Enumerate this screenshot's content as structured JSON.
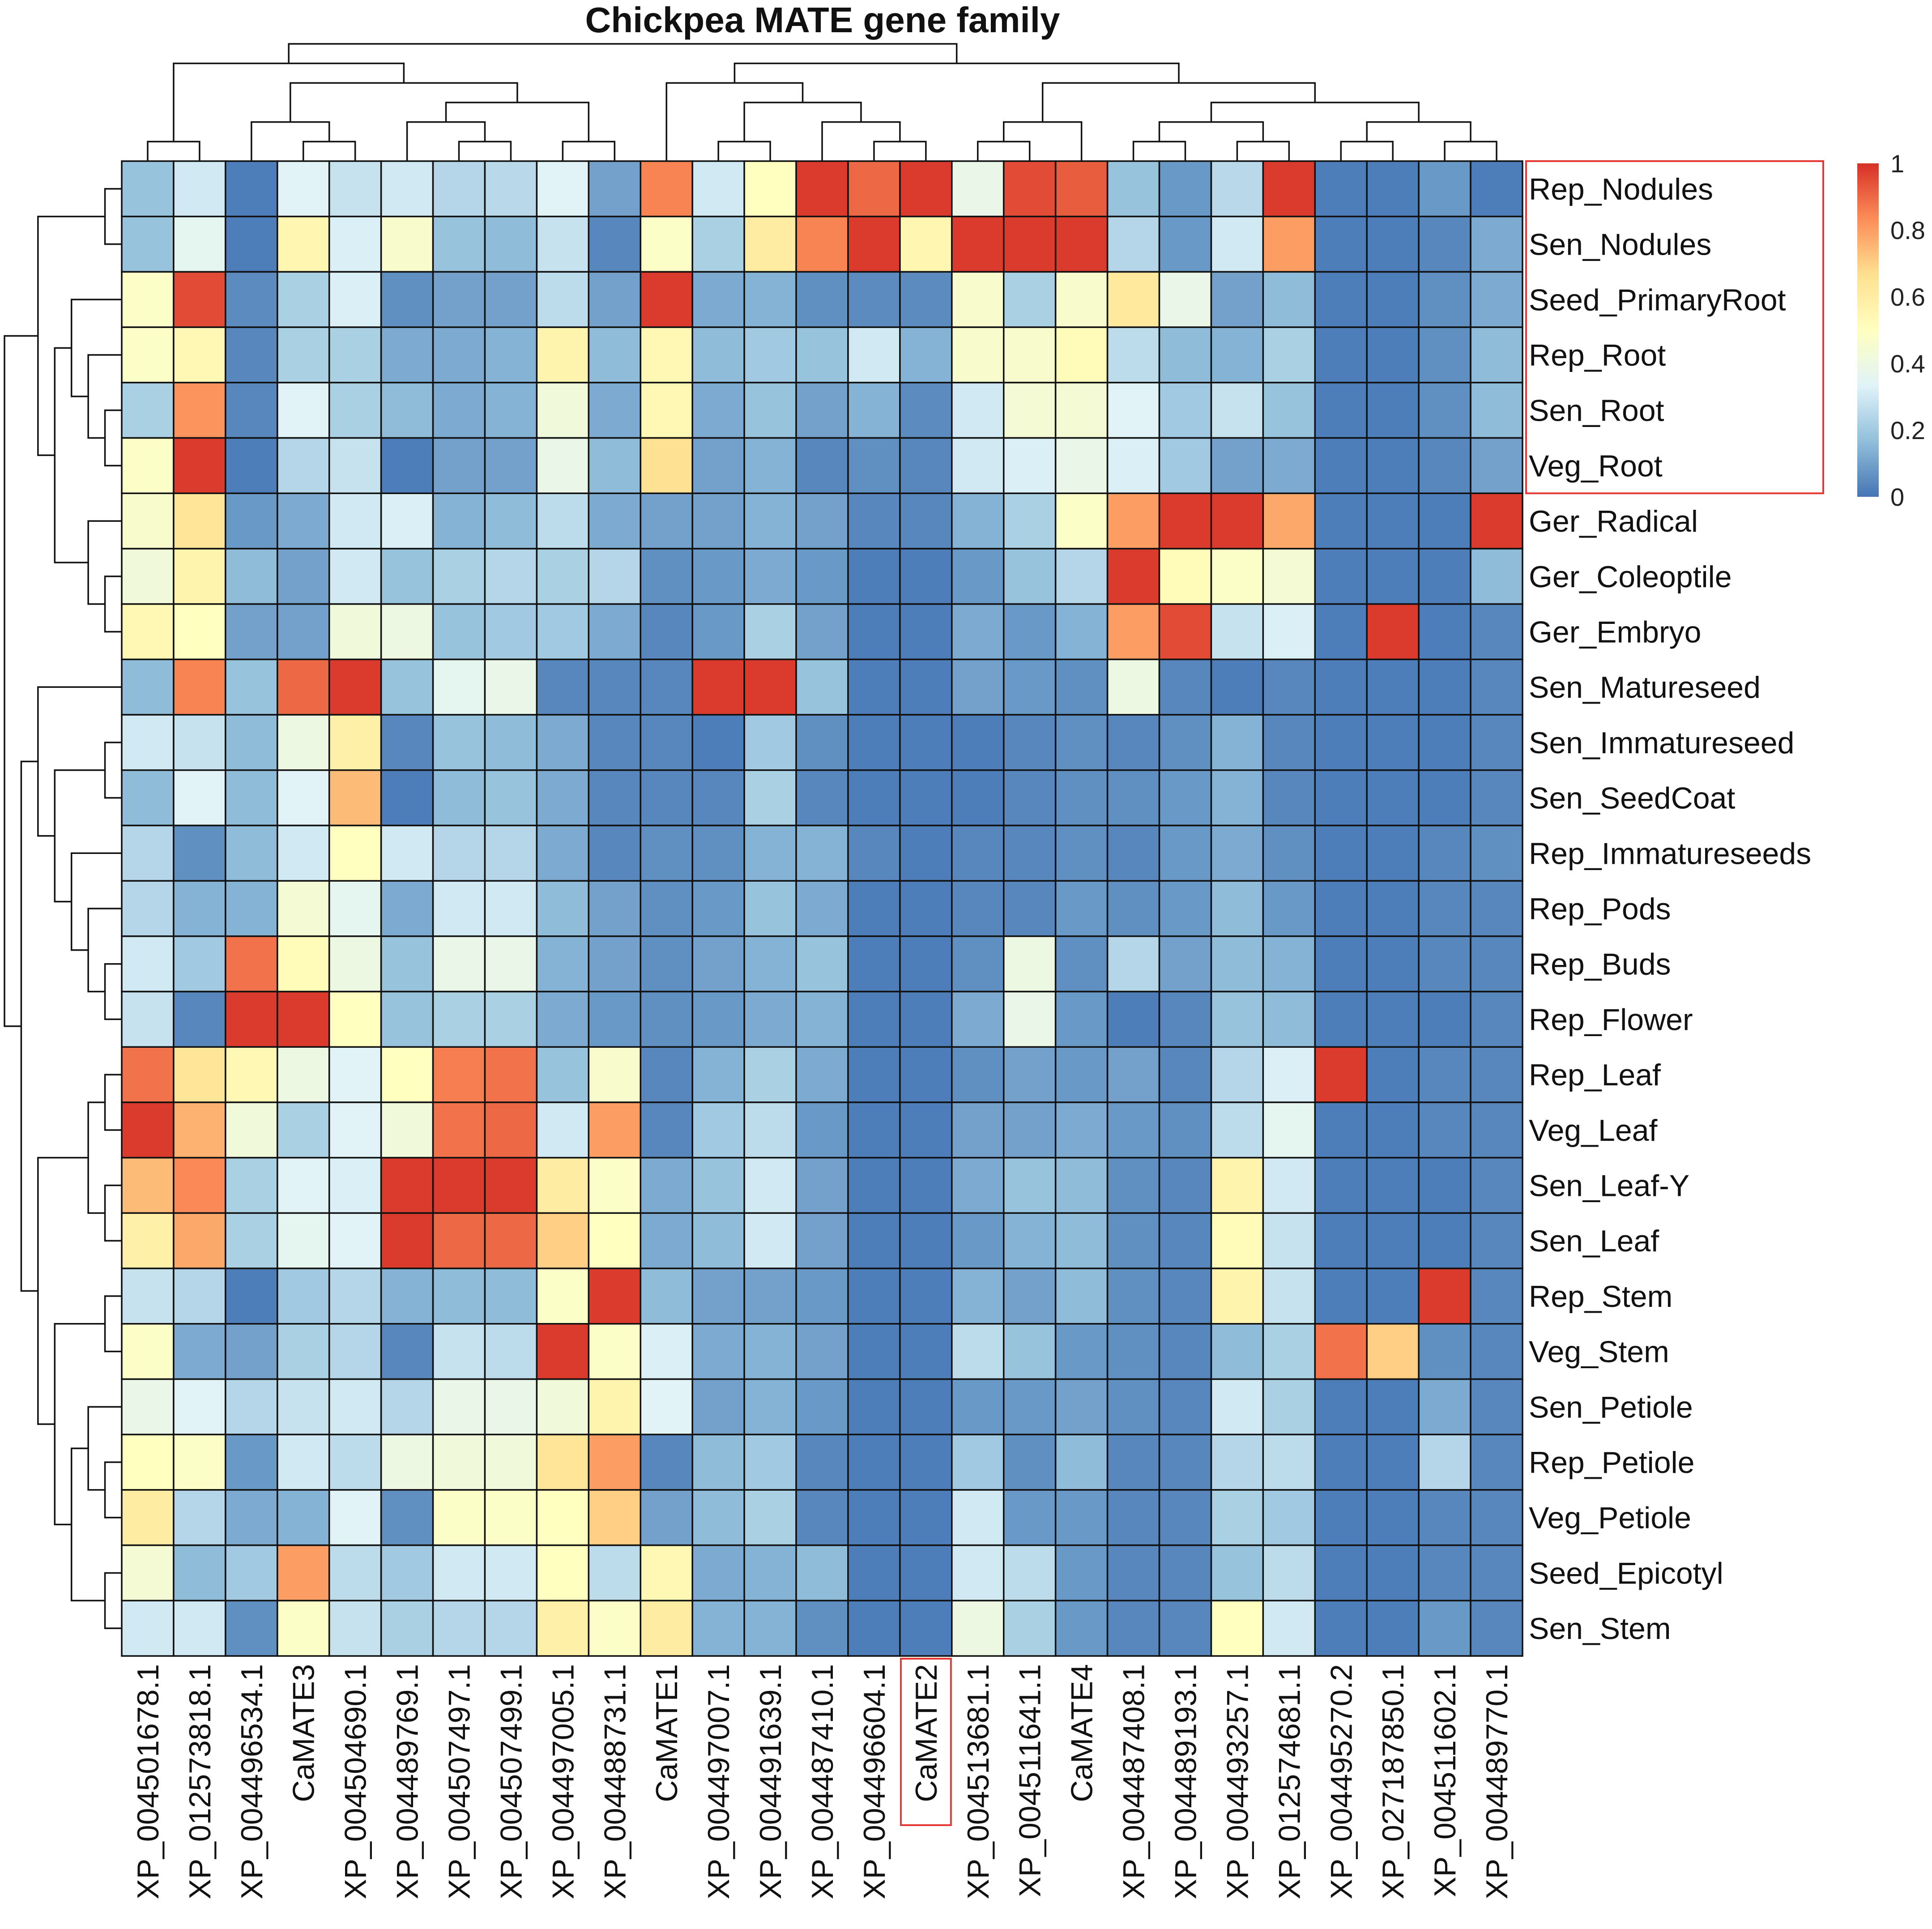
{
  "chart_data": {
    "type": "heatmap",
    "title": "Chickpea MATE gene family",
    "columns": [
      "XP_004501678.1",
      "XP_012573818.1",
      "XP_004496534.1",
      "CaMATE3",
      "XP_004504690.1",
      "XP_004489769.1",
      "XP_004507497.1",
      "XP_004507499.1",
      "XP_004497005.1",
      "XP_004488731.1",
      "CaMATE1",
      "XP_004497007.1",
      "XP_004491639.1",
      "XP_004487410.1",
      "XP_004496604.1",
      "CaMATE2",
      "XP_004513681.1",
      "XP_004511641.1",
      "CaMATE4",
      "XP_004487408.1",
      "XP_004489193.1",
      "XP_004493257.1",
      "XP_012574681.1",
      "XP_004495270.2",
      "XP_027187850.1",
      "XP_004511602.1",
      "XP_004489770.1"
    ],
    "rows": [
      "Rep_Nodules",
      "Sen_Nodules",
      "Seed_PrimaryRoot",
      "Rep_Root",
      "Sen_Root",
      "Veg_Root",
      "Ger_Radical",
      "Ger_Coleoptile",
      "Ger_Embryo",
      "Sen_Matureseed",
      "Sen_Immatureseed",
      "Sen_SeedCoat",
      "Rep_Immatureseeds",
      "Rep_Pods",
      "Rep_Buds",
      "Rep_Flower",
      "Rep_Leaf",
      "Veg_Leaf",
      "Sen_Leaf-Y",
      "Sen_Leaf",
      "Rep_Stem",
      "Veg_Stem",
      "Sen_Petiole",
      "Rep_Petiole",
      "Veg_Petiole",
      "Seed_Epicotyl",
      "Sen_Stem"
    ],
    "values": [
      [
        0.18,
        0.3,
        0.02,
        0.34,
        0.28,
        0.3,
        0.24,
        0.25,
        0.34,
        0.1,
        0.85,
        0.3,
        0.5,
        0.98,
        0.9,
        0.98,
        0.38,
        0.95,
        0.92,
        0.18,
        0.08,
        0.25,
        0.98,
        0.02,
        0.02,
        0.08,
        0.02
      ],
      [
        0.18,
        0.36,
        0.02,
        0.55,
        0.32,
        0.46,
        0.18,
        0.16,
        0.28,
        0.04,
        0.48,
        0.22,
        0.6,
        0.85,
        0.98,
        0.55,
        0.98,
        0.98,
        0.98,
        0.24,
        0.08,
        0.3,
        0.8,
        0.02,
        0.02,
        0.04,
        0.12
      ],
      [
        0.48,
        0.95,
        0.05,
        0.22,
        0.32,
        0.06,
        0.1,
        0.1,
        0.26,
        0.1,
        0.98,
        0.12,
        0.14,
        0.06,
        0.05,
        0.05,
        0.46,
        0.22,
        0.46,
        0.62,
        0.38,
        0.1,
        0.16,
        0.02,
        0.02,
        0.06,
        0.12
      ],
      [
        0.48,
        0.54,
        0.04,
        0.22,
        0.22,
        0.12,
        0.12,
        0.14,
        0.56,
        0.16,
        0.54,
        0.16,
        0.2,
        0.18,
        0.3,
        0.14,
        0.46,
        0.46,
        0.52,
        0.26,
        0.16,
        0.14,
        0.22,
        0.02,
        0.02,
        0.06,
        0.16
      ],
      [
        0.22,
        0.82,
        0.04,
        0.34,
        0.22,
        0.16,
        0.12,
        0.14,
        0.42,
        0.12,
        0.54,
        0.12,
        0.18,
        0.1,
        0.14,
        0.05,
        0.3,
        0.44,
        0.44,
        0.34,
        0.2,
        0.28,
        0.18,
        0.02,
        0.02,
        0.06,
        0.16
      ],
      [
        0.48,
        0.98,
        0.02,
        0.24,
        0.28,
        0.02,
        0.1,
        0.1,
        0.38,
        0.16,
        0.66,
        0.1,
        0.14,
        0.04,
        0.06,
        0.04,
        0.3,
        0.32,
        0.38,
        0.32,
        0.2,
        0.1,
        0.12,
        0.02,
        0.02,
        0.04,
        0.1
      ],
      [
        0.46,
        0.64,
        0.08,
        0.12,
        0.3,
        0.32,
        0.14,
        0.16,
        0.26,
        0.12,
        0.1,
        0.1,
        0.14,
        0.1,
        0.04,
        0.04,
        0.14,
        0.22,
        0.48,
        0.8,
        0.98,
        0.98,
        0.78,
        0.02,
        0.02,
        0.02,
        0.98
      ],
      [
        0.42,
        0.56,
        0.16,
        0.1,
        0.3,
        0.18,
        0.22,
        0.24,
        0.22,
        0.24,
        0.06,
        0.08,
        0.12,
        0.08,
        0.02,
        0.02,
        0.08,
        0.18,
        0.24,
        0.98,
        0.52,
        0.48,
        0.44,
        0.02,
        0.02,
        0.02,
        0.16
      ],
      [
        0.54,
        0.5,
        0.1,
        0.1,
        0.42,
        0.4,
        0.18,
        0.2,
        0.2,
        0.12,
        0.04,
        0.08,
        0.22,
        0.1,
        0.02,
        0.02,
        0.12,
        0.08,
        0.14,
        0.8,
        0.95,
        0.28,
        0.32,
        0.02,
        0.98,
        0.02,
        0.04
      ],
      [
        0.16,
        0.85,
        0.18,
        0.9,
        0.98,
        0.18,
        0.36,
        0.38,
        0.04,
        0.04,
        0.04,
        0.98,
        0.98,
        0.18,
        0.02,
        0.02,
        0.1,
        0.08,
        0.06,
        0.4,
        0.04,
        0.02,
        0.04,
        0.02,
        0.02,
        0.02,
        0.04
      ],
      [
        0.3,
        0.28,
        0.16,
        0.4,
        0.58,
        0.04,
        0.18,
        0.16,
        0.12,
        0.04,
        0.04,
        0.02,
        0.2,
        0.06,
        0.02,
        0.02,
        0.02,
        0.04,
        0.06,
        0.04,
        0.06,
        0.14,
        0.04,
        0.02,
        0.02,
        0.02,
        0.04
      ],
      [
        0.16,
        0.34,
        0.16,
        0.34,
        0.74,
        0.02,
        0.16,
        0.18,
        0.12,
        0.04,
        0.04,
        0.04,
        0.22,
        0.04,
        0.02,
        0.02,
        0.02,
        0.04,
        0.06,
        0.06,
        0.08,
        0.14,
        0.04,
        0.02,
        0.02,
        0.02,
        0.04
      ],
      [
        0.24,
        0.06,
        0.16,
        0.3,
        0.5,
        0.3,
        0.24,
        0.24,
        0.12,
        0.04,
        0.06,
        0.06,
        0.14,
        0.14,
        0.04,
        0.02,
        0.04,
        0.04,
        0.06,
        0.04,
        0.08,
        0.12,
        0.06,
        0.02,
        0.02,
        0.04,
        0.06
      ],
      [
        0.24,
        0.14,
        0.14,
        0.44,
        0.36,
        0.12,
        0.3,
        0.3,
        0.16,
        0.1,
        0.06,
        0.08,
        0.18,
        0.12,
        0.02,
        0.02,
        0.04,
        0.04,
        0.08,
        0.06,
        0.08,
        0.16,
        0.08,
        0.02,
        0.02,
        0.04,
        0.04
      ],
      [
        0.3,
        0.2,
        0.88,
        0.52,
        0.4,
        0.18,
        0.38,
        0.38,
        0.14,
        0.1,
        0.06,
        0.1,
        0.14,
        0.18,
        0.02,
        0.02,
        0.06,
        0.4,
        0.06,
        0.24,
        0.1,
        0.16,
        0.14,
        0.02,
        0.02,
        0.04,
        0.04
      ],
      [
        0.28,
        0.04,
        0.98,
        0.98,
        0.5,
        0.18,
        0.22,
        0.22,
        0.12,
        0.08,
        0.06,
        0.08,
        0.12,
        0.14,
        0.02,
        0.02,
        0.12,
        0.38,
        0.08,
        0.02,
        0.04,
        0.18,
        0.16,
        0.02,
        0.02,
        0.02,
        0.04
      ],
      [
        0.88,
        0.64,
        0.54,
        0.4,
        0.34,
        0.5,
        0.86,
        0.88,
        0.18,
        0.46,
        0.04,
        0.14,
        0.22,
        0.12,
        0.02,
        0.02,
        0.06,
        0.1,
        0.08,
        0.1,
        0.04,
        0.24,
        0.32,
        0.98,
        0.02,
        0.04,
        0.04
      ],
      [
        0.98,
        0.76,
        0.42,
        0.22,
        0.34,
        0.42,
        0.88,
        0.9,
        0.3,
        0.8,
        0.04,
        0.2,
        0.26,
        0.08,
        0.02,
        0.02,
        0.1,
        0.1,
        0.12,
        0.08,
        0.06,
        0.26,
        0.36,
        0.02,
        0.02,
        0.04,
        0.04
      ],
      [
        0.74,
        0.84,
        0.22,
        0.34,
        0.32,
        0.98,
        0.98,
        0.98,
        0.6,
        0.48,
        0.12,
        0.18,
        0.3,
        0.1,
        0.02,
        0.02,
        0.12,
        0.18,
        0.16,
        0.06,
        0.04,
        0.56,
        0.3,
        0.02,
        0.02,
        0.02,
        0.04
      ],
      [
        0.58,
        0.78,
        0.22,
        0.36,
        0.34,
        0.98,
        0.9,
        0.9,
        0.7,
        0.5,
        0.12,
        0.16,
        0.3,
        0.1,
        0.02,
        0.02,
        0.08,
        0.14,
        0.16,
        0.06,
        0.04,
        0.52,
        0.28,
        0.02,
        0.02,
        0.02,
        0.04
      ],
      [
        0.28,
        0.24,
        0.02,
        0.2,
        0.24,
        0.14,
        0.16,
        0.16,
        0.48,
        0.98,
        0.16,
        0.1,
        0.1,
        0.08,
        0.02,
        0.02,
        0.14,
        0.1,
        0.16,
        0.06,
        0.04,
        0.56,
        0.28,
        0.02,
        0.02,
        0.98,
        0.04
      ],
      [
        0.48,
        0.12,
        0.1,
        0.22,
        0.24,
        0.04,
        0.28,
        0.26,
        0.98,
        0.48,
        0.32,
        0.12,
        0.14,
        0.1,
        0.02,
        0.02,
        0.26,
        0.18,
        0.08,
        0.06,
        0.04,
        0.16,
        0.22,
        0.88,
        0.7,
        0.06,
        0.04
      ],
      [
        0.38,
        0.34,
        0.24,
        0.28,
        0.3,
        0.24,
        0.38,
        0.38,
        0.42,
        0.56,
        0.34,
        0.1,
        0.14,
        0.08,
        0.02,
        0.02,
        0.08,
        0.08,
        0.1,
        0.06,
        0.04,
        0.3,
        0.22,
        0.02,
        0.02,
        0.12,
        0.04
      ],
      [
        0.5,
        0.48,
        0.08,
        0.3,
        0.26,
        0.4,
        0.42,
        0.42,
        0.64,
        0.8,
        0.04,
        0.16,
        0.2,
        0.04,
        0.02,
        0.02,
        0.2,
        0.06,
        0.16,
        0.04,
        0.04,
        0.24,
        0.26,
        0.02,
        0.02,
        0.24,
        0.04
      ],
      [
        0.6,
        0.24,
        0.12,
        0.14,
        0.34,
        0.06,
        0.48,
        0.48,
        0.5,
        0.7,
        0.1,
        0.16,
        0.22,
        0.04,
        0.02,
        0.02,
        0.3,
        0.08,
        0.08,
        0.04,
        0.04,
        0.22,
        0.2,
        0.02,
        0.02,
        0.04,
        0.04
      ],
      [
        0.44,
        0.16,
        0.2,
        0.8,
        0.26,
        0.2,
        0.3,
        0.3,
        0.5,
        0.26,
        0.54,
        0.12,
        0.14,
        0.16,
        0.02,
        0.02,
        0.3,
        0.26,
        0.08,
        0.04,
        0.04,
        0.18,
        0.26,
        0.02,
        0.02,
        0.04,
        0.04
      ],
      [
        0.3,
        0.3,
        0.06,
        0.48,
        0.28,
        0.22,
        0.24,
        0.24,
        0.58,
        0.48,
        0.6,
        0.14,
        0.14,
        0.06,
        0.02,
        0.02,
        0.4,
        0.22,
        0.08,
        0.04,
        0.04,
        0.5,
        0.3,
        0.02,
        0.02,
        0.08,
        0.04
      ]
    ],
    "color_scale": {
      "min": 0,
      "max": 1,
      "stops": [
        "#4575b4",
        "#91bfdb",
        "#e0f3f8",
        "#ffffbf",
        "#fee090",
        "#fc8d59",
        "#d73027"
      ]
    },
    "legend": {
      "ticks": [
        "0",
        "0.2",
        "0.4",
        "0.6",
        "0.8",
        "1"
      ]
    },
    "highlighted_rows": [
      "Rep_Nodules",
      "Sen_Nodules",
      "Seed_PrimaryRoot",
      "Rep_Root",
      "Sen_Root",
      "Veg_Root"
    ],
    "highlighted_columns": [
      "CaMATE2"
    ],
    "highlight_color": "#e53935",
    "line_color": "#111111"
  }
}
